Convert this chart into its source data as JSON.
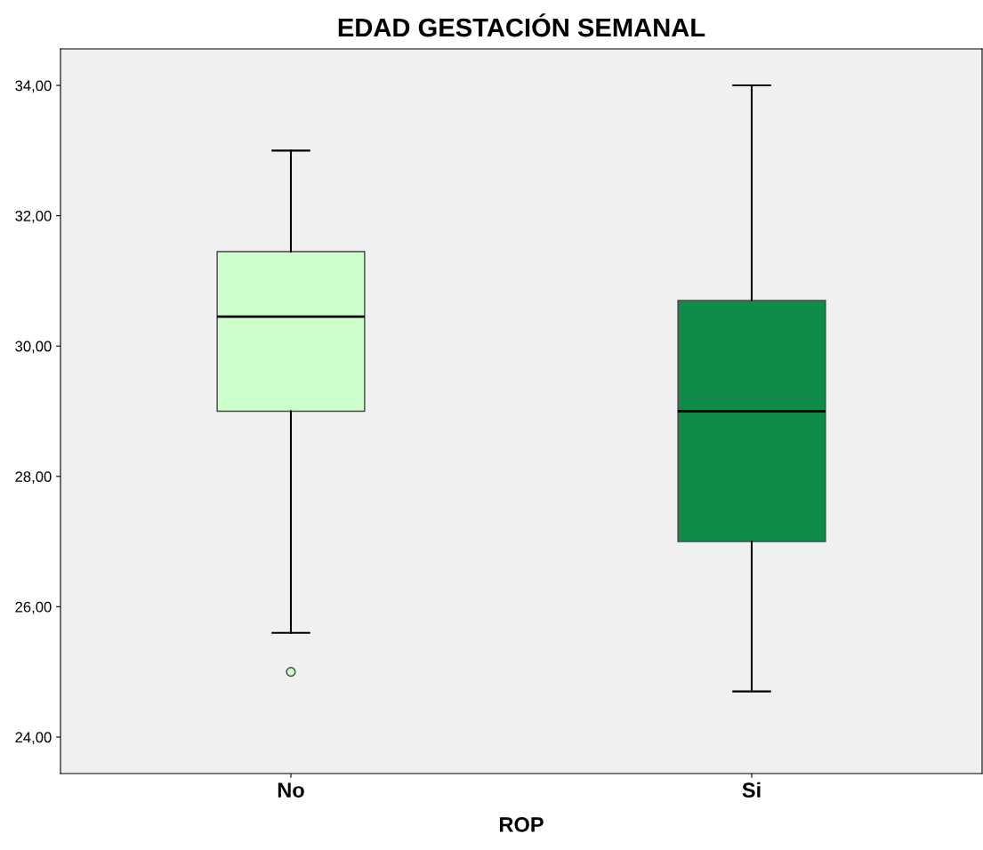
{
  "chart_data": {
    "type": "box",
    "title": "EDAD GESTACIÓN SEMANAL",
    "xlabel": "ROP",
    "categories": [
      "No",
      "Si"
    ],
    "series": [
      {
        "colors": [
          "#ccffcc",
          "#108c4a"
        ],
        "boxes": [
          {
            "low": 25.6,
            "q1": 29.0,
            "median": 30.45,
            "q3": 31.45,
            "high": 33.0,
            "outliers": [
              25.0
            ]
          },
          {
            "low": 24.7,
            "q1": 27.0,
            "median": 29.0,
            "q3": 30.7,
            "high": 34.0
          }
        ]
      }
    ],
    "ylim": [
      23.44,
      34.56
    ],
    "yticks": [
      {
        "value": 24,
        "label": "24,00"
      },
      {
        "value": 26,
        "label": "26,00"
      },
      {
        "value": 28,
        "label": "28,00"
      },
      {
        "value": 30,
        "label": "30,00"
      },
      {
        "value": 32,
        "label": "32,00"
      },
      {
        "value": 34,
        "label": "34,00"
      }
    ],
    "grid": false
  }
}
